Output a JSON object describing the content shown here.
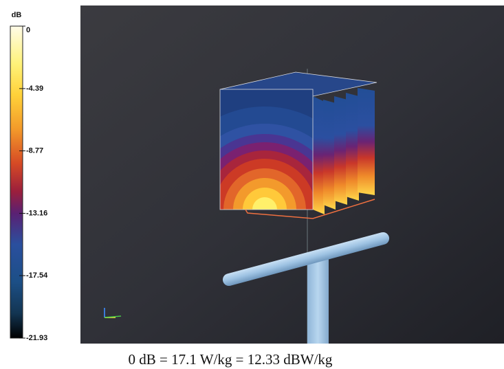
{
  "colorbar": {
    "unit": "dB",
    "lim": [
      -21.93,
      0
    ],
    "ticks": [
      0,
      -4.39,
      -8.77,
      -13.16,
      -17.54,
      -21.93
    ]
  },
  "caption": "0 dB = 17.1 W/kg = 12.33 dBW/kg"
}
